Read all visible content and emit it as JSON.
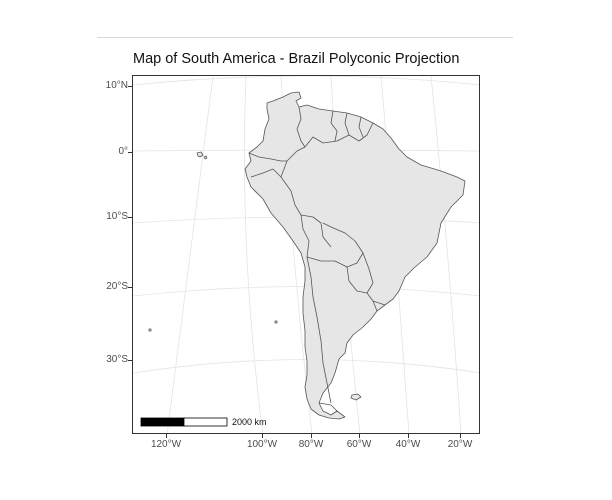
{
  "map": {
    "title": "Map of South America - Brazil Polyconic Projection",
    "y_axis_labels": [
      "10°N",
      "0°",
      "10°S",
      "20°S",
      "30°S"
    ],
    "x_axis_labels": [
      "120°W",
      "100°W",
      "80°W",
      "60°W",
      "40°W",
      "20°W"
    ],
    "scale_bar": {
      "label": "2000 km"
    },
    "colors": {
      "land_fill": "#e6e6e6",
      "border_stroke": "#555555",
      "graticule": "#e4e4e4",
      "panel_border": "#333333"
    }
  }
}
